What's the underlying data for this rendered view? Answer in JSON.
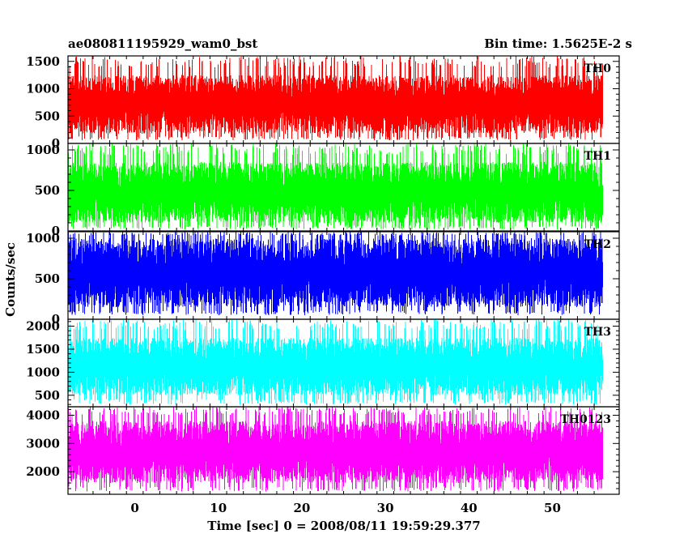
{
  "header": {
    "title_left": "ae080811195929_wam0_bst",
    "title_right": "Bin time: 1.5625E-2 s"
  },
  "chart_data": {
    "type": "line",
    "title": "ae080811195929_wam0_bst",
    "subtitle": "Bin time: 1.5625E-2 s",
    "xlabel": "Time [sec] 0 = 2008/08/11 19:59:29.377",
    "ylabel": "Counts/sec",
    "xlim": [
      -8,
      58
    ],
    "x_start": -8,
    "x_end": 56,
    "bin_time": 0.015625,
    "x_ticks": [
      0,
      10,
      20,
      30,
      40,
      50
    ],
    "grid": false,
    "panels": [
      {
        "name": "TH0",
        "color": "#ff0000",
        "ylim": [
          0,
          1600
        ],
        "y_ticks": [
          0,
          500,
          1000,
          1500
        ],
        "noise_low": 180,
        "noise_high": 1250,
        "spike_low": 60,
        "spike_high": 1600
      },
      {
        "name": "TH1",
        "color": "#00ff00",
        "ylim": [
          0,
          1080
        ],
        "y_ticks": [
          0,
          500,
          1000
        ],
        "noise_low": 100,
        "noise_high": 850,
        "spike_low": 20,
        "spike_high": 1080
      },
      {
        "name": "TH2",
        "color": "#0000ff",
        "ylim": [
          0,
          1080
        ],
        "y_ticks": [
          0,
          500,
          1000
        ],
        "noise_low": 150,
        "noise_high": 1000,
        "spike_low": 50,
        "spike_high": 1080
      },
      {
        "name": "TH3",
        "color": "#00ffff",
        "ylim": [
          250,
          2150
        ],
        "y_ticks": [
          500,
          1000,
          1500,
          2000
        ],
        "noise_low": 500,
        "noise_high": 1750,
        "spike_low": 300,
        "spike_high": 2150
      },
      {
        "name": "TH0123",
        "color": "#ff00ff",
        "ylim": [
          1200,
          4300
        ],
        "y_ticks": [
          2000,
          3000,
          4000
        ],
        "noise_low": 1600,
        "noise_high": 3800,
        "spike_low": 1300,
        "spike_high": 4300
      }
    ]
  }
}
